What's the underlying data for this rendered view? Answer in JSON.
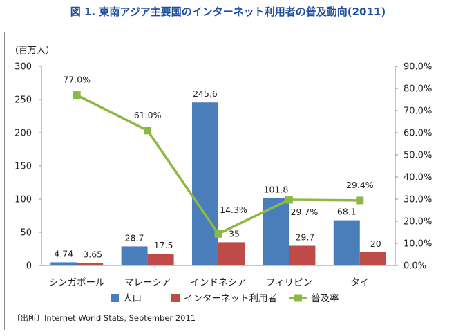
{
  "title": "図 1. 東南アジア主要国のインターネット利用者の普及動向(2011)",
  "source": "〔出所〕Internet World Stats, September 2011",
  "colors": {
    "title": "#1f4e9c",
    "population": "#4a7ebb",
    "users": "#be4b48",
    "rate": "#8cb944"
  },
  "chart_data": {
    "type": "bar",
    "categories": [
      "シンガポール",
      "マレーシア",
      "インドネシア",
      "フィリピン",
      "タイ"
    ],
    "series": [
      {
        "name": "人口",
        "type": "bar",
        "axis": "left",
        "values": [
          4.74,
          28.7,
          245.6,
          101.8,
          68.1
        ],
        "labels": [
          "4.74",
          "28.7",
          "245.6",
          "101.8",
          "68.1"
        ]
      },
      {
        "name": "インターネット利用者",
        "type": "bar",
        "axis": "left",
        "values": [
          3.65,
          17.5,
          35,
          29.7,
          20
        ],
        "labels": [
          "3.65",
          "17.5",
          "35",
          "29.7",
          "20"
        ]
      },
      {
        "name": "普及率",
        "type": "line",
        "axis": "right",
        "values": [
          77.0,
          61.0,
          14.3,
          29.7,
          29.4
        ],
        "labels": [
          "77.0%",
          "61.0%",
          "14.3%",
          "29.7%",
          "29.4%"
        ]
      }
    ],
    "ylabel": "（百万人）",
    "ylim": [
      0,
      300
    ],
    "y_ticks": [
      "0",
      "50",
      "100",
      "150",
      "200",
      "250",
      "300"
    ],
    "y2lim": [
      0,
      90
    ],
    "y2_ticks": [
      "0.0%",
      "10.0%",
      "20.0%",
      "30.0%",
      "40.0%",
      "50.0%",
      "60.0%",
      "70.0%",
      "80.0%",
      "90.0%"
    ],
    "grid": false,
    "legend": "bottom"
  }
}
